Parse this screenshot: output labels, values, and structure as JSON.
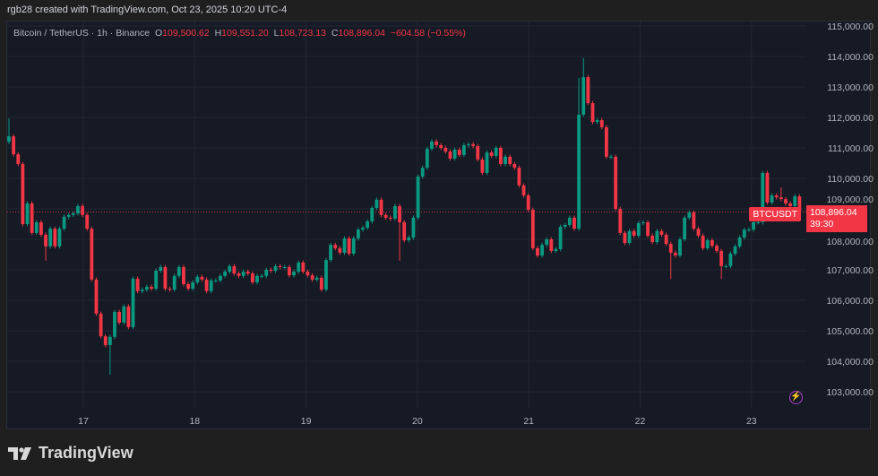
{
  "credit": "rgb28 created with TradingView.com, Oct 23, 2025 10:20 UTC-4",
  "legend": {
    "symbol": "Bitcoin / TetherUS · 1h · Binance",
    "o_label": "O",
    "o": "109,500.62",
    "h_label": "H",
    "h": "109,551.20",
    "l_label": "L",
    "l": "108,723.13",
    "c_label": "C",
    "c": "108,896.04",
    "change": "−604.58 (−0.55%)"
  },
  "last_price": {
    "symbol": "BTCUSDT",
    "price": "108,896.04",
    "countdown": "39:30"
  },
  "brand": "TradingView",
  "colors": {
    "up": "#089981",
    "down": "#f23645",
    "background": "#161a25",
    "grid": "#232734",
    "accent": "#b13fcf"
  },
  "icons": {
    "alert": "lightning-icon",
    "logo": "tradingview-logo"
  },
  "chart_data": {
    "type": "candlestick",
    "interval": "1h",
    "ylim": [
      103000,
      115000
    ],
    "y_ticks": [
      "115,000.00",
      "114,000.00",
      "113,000.00",
      "112,000.00",
      "111,000.00",
      "110,000.00",
      "109,000.00",
      "108,000.00",
      "107,000.00",
      "106,000.00",
      "105,000.00",
      "104,000.00",
      "103,000.00"
    ],
    "y_tick_values": [
      115000,
      114000,
      113000,
      112000,
      111000,
      110000,
      109000,
      108000,
      107000,
      106000,
      105000,
      104000,
      103000
    ],
    "x_ticks": [
      "17",
      "18",
      "19",
      "20",
      "21",
      "22",
      "23"
    ],
    "grid": true,
    "first_open": 111200,
    "close": [
      111380,
      110790,
      110470,
      108500,
      109180,
      108210,
      108560,
      108150,
      107770,
      108350,
      107770,
      108350,
      108740,
      108800,
      108850,
      109090,
      108800,
      108350,
      106680,
      105560,
      104820,
      104530,
      104800,
      105620,
      105270,
      105800,
      105120,
      106710,
      106300,
      106350,
      106440,
      106380,
      106970,
      107090,
      106380,
      106350,
      106800,
      107090,
      106530,
      106380,
      106590,
      106770,
      106680,
      106300,
      106650,
      106650,
      106800,
      106940,
      107120,
      106880,
      106800,
      106940,
      106880,
      106590,
      106800,
      106800,
      107000,
      106970,
      107120,
      107090,
      107090,
      106820,
      106940,
      107240,
      106940,
      106820,
      106680,
      106740,
      106350,
      107320,
      107820,
      107710,
      107560,
      108030,
      107530,
      108030,
      108320,
      108380,
      108590,
      109030,
      109300,
      108800,
      108710,
      108680,
      109090,
      108560,
      107970,
      108060,
      108710,
      110060,
      110350,
      110970,
      111210,
      111090,
      111000,
      110880,
      110650,
      110940,
      110770,
      111090,
      111120,
      111060,
      110620,
      110180,
      110850,
      110740,
      111000,
      110470,
      110710,
      110470,
      110350,
      109770,
      109440,
      108970,
      107710,
      107470,
      107820,
      108000,
      107620,
      107680,
      108410,
      108470,
      108710,
      108350,
      112090,
      113320,
      112470,
      111850,
      111910,
      111680,
      110710,
      110710,
      109000,
      108210,
      107880,
      108270,
      108120,
      108530,
      108560,
      108120,
      107910,
      108270,
      108150,
      107850,
      107560,
      107470,
      108000,
      108710,
      108880,
      108350,
      108120,
      107710,
      107970,
      107790,
      107620,
      107120,
      107120,
      107530,
      107770,
      108060,
      108320,
      108320,
      108560,
      108560,
      110180,
      109210,
      109440,
      109380,
      109320,
      109180,
      109090,
      109410,
      108896.04
    ],
    "wick_extremes": [
      {
        "index": 0,
        "high": 111970
      },
      {
        "index": 8,
        "low": 107300
      },
      {
        "index": 22,
        "low": 103560
      },
      {
        "index": 85,
        "low": 107300
      },
      {
        "index": 124,
        "high": 113300
      },
      {
        "index": 125,
        "high": 113950
      },
      {
        "index": 144,
        "low": 106700
      },
      {
        "index": 155,
        "low": 106700
      },
      {
        "index": 168,
        "high": 109700
      }
    ],
    "last_price": 108896.04
  }
}
